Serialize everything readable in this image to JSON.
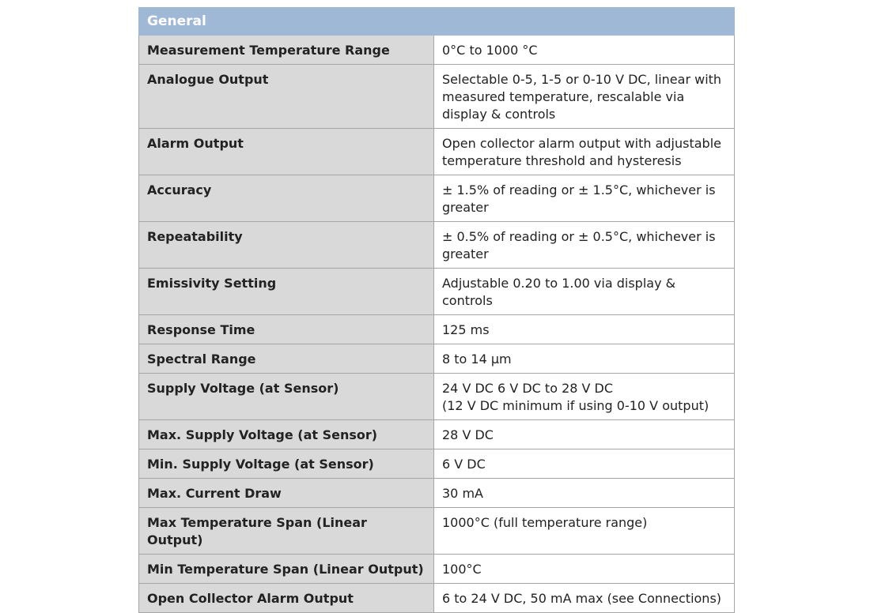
{
  "table": {
    "section_title": "General",
    "rows": [
      {
        "label": "Measurement Temperature Range",
        "value": [
          "0°C to 1000 °C"
        ]
      },
      {
        "label": "Analogue Output",
        "value": [
          "Selectable 0-5, 1-5 or 0-10 V DC, linear with",
          "measured temperature, rescalable via",
          "display & controls"
        ]
      },
      {
        "label": "Alarm Output",
        "value": [
          "Open collector alarm output with adjustable",
          "temperature threshold and hysteresis"
        ]
      },
      {
        "label": "Accuracy",
        "value": [
          "± 1.5% of reading or ± 1.5°C, whichever is",
          "greater"
        ]
      },
      {
        "label": "Repeatability",
        "value": [
          "± 0.5% of reading or ± 0.5°C, whichever is",
          "greater"
        ]
      },
      {
        "label": "Emissivity Setting",
        "value": [
          "Adjustable 0.20 to 1.00 via display & controls"
        ]
      },
      {
        "label": "Response Time",
        "value": [
          "125 ms"
        ]
      },
      {
        "label": "Spectral Range",
        "value": [
          "8 to 14 μm"
        ]
      },
      {
        "label": "Supply Voltage (at Sensor)",
        "value": [
          "24 V DC 6 V DC to 28 V DC",
          "(12 V DC minimum if using 0-10 V output)"
        ]
      },
      {
        "label": "Max. Supply Voltage (at Sensor)",
        "value": [
          "28 V DC"
        ]
      },
      {
        "label": "Min. Supply Voltage (at Sensor)",
        "value": [
          "6 V DC"
        ]
      },
      {
        "label": "Max. Current Draw",
        "value": [
          "30 mA"
        ]
      },
      {
        "label": "Max Temperature Span (Linear Output)",
        "value": [
          "1000°C (full temperature range)"
        ]
      },
      {
        "label": "Min Temperature Span (Linear Output)",
        "value": [
          "100°C"
        ]
      },
      {
        "label": "Open Collector Alarm Output",
        "value": [
          "6 to 24 V DC, 50 mA max (see Connections)"
        ]
      }
    ]
  },
  "colors": {
    "header_bg": "#9fb8d6",
    "label_bg": "#d9d9d9",
    "border": "#a6a6a6"
  }
}
